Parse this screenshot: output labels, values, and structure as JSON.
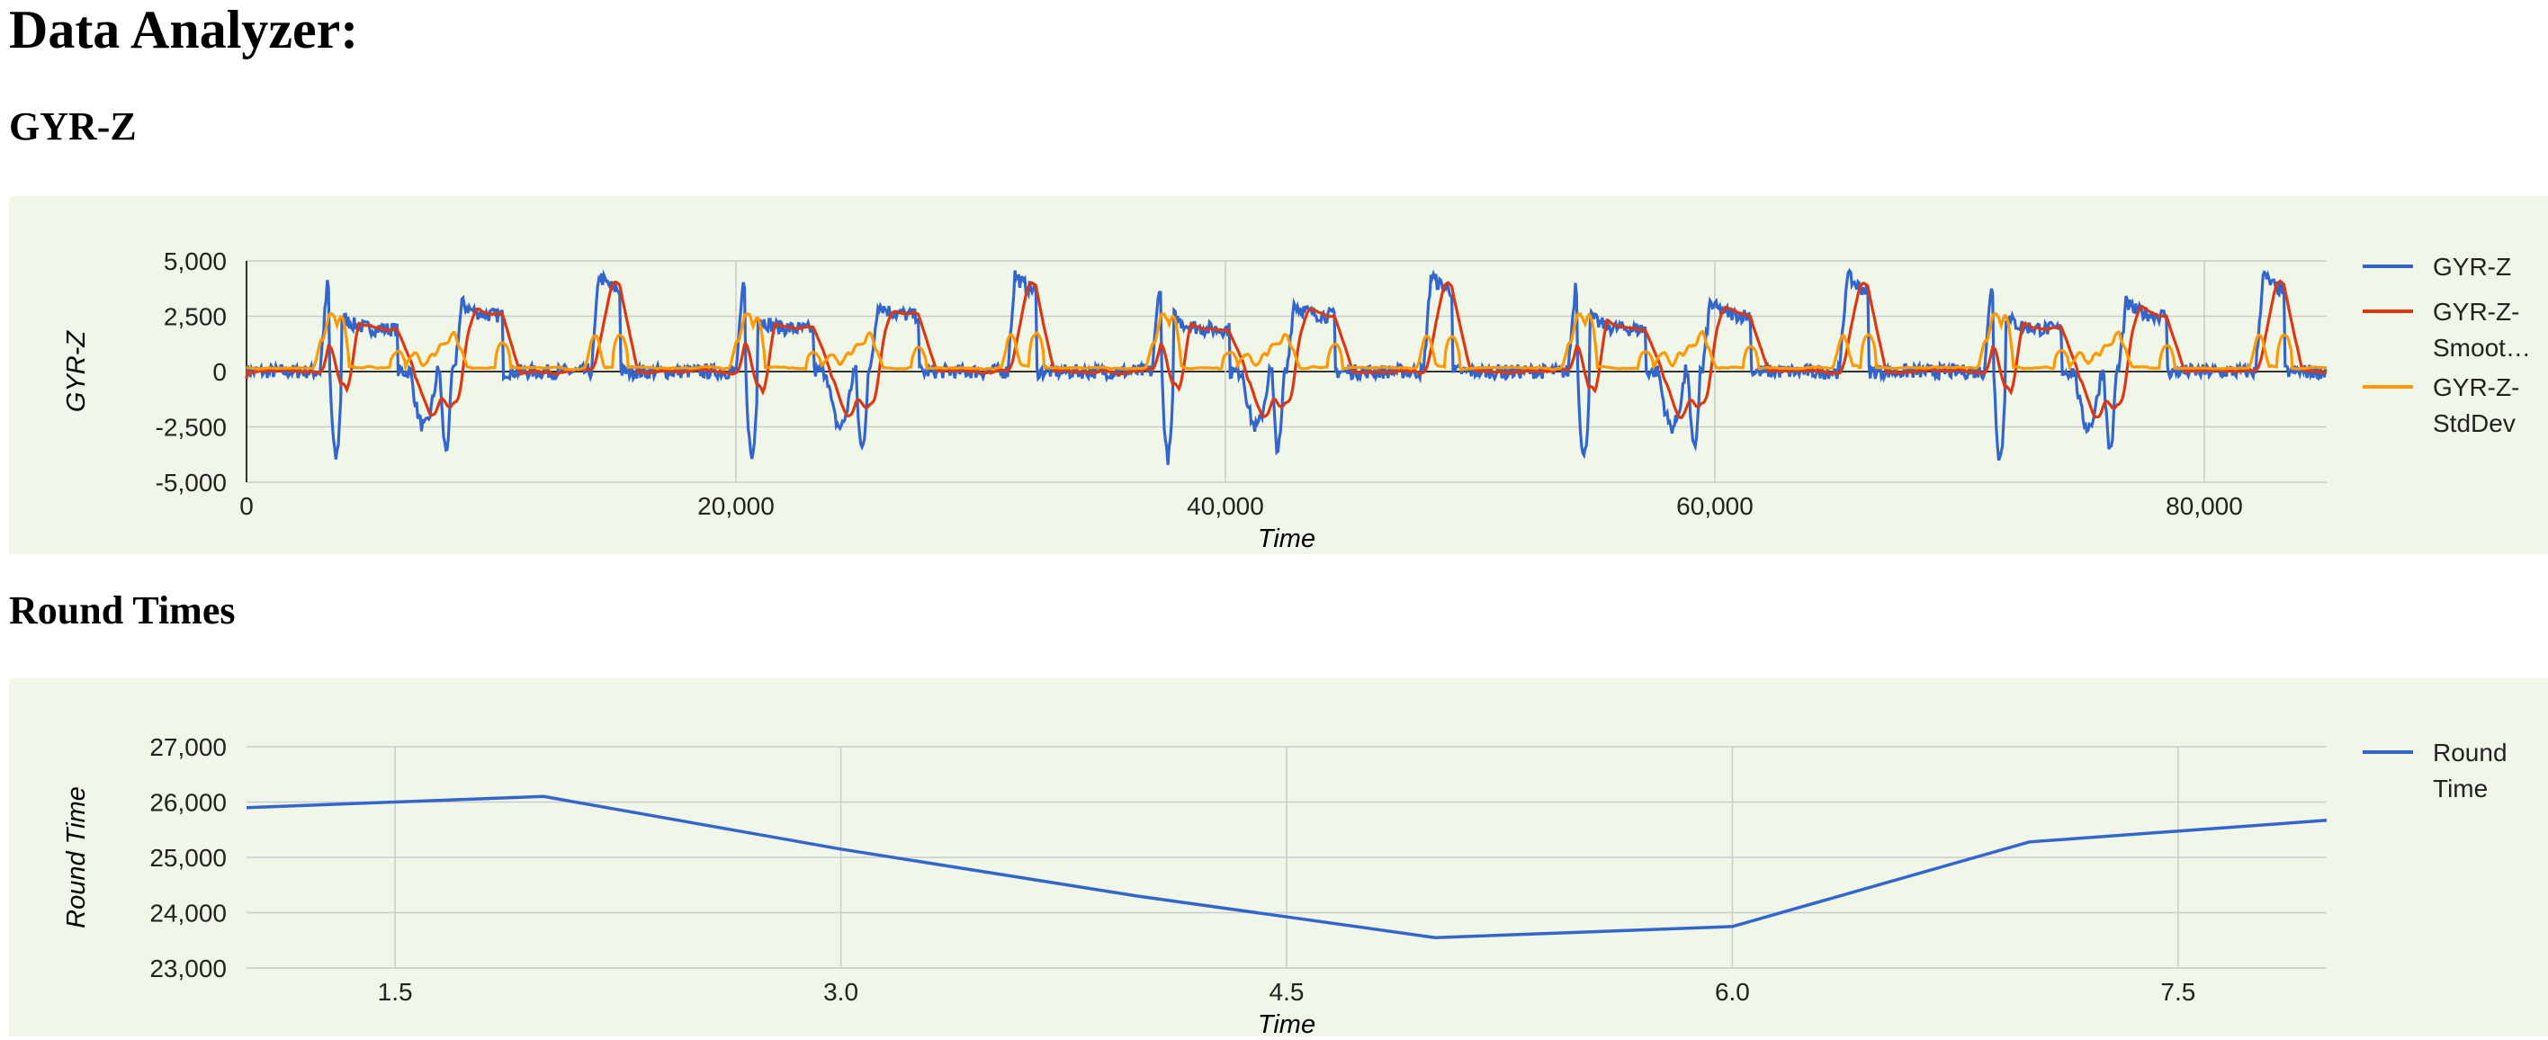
{
  "page": {
    "title": "Data Analyzer:",
    "section1_title": "GYR-Z",
    "section2_title": "Round Times"
  },
  "colors": {
    "panel_bg": "#f0f6e8",
    "blue": "#3366cc",
    "red": "#dc3912",
    "orange": "#ff9900",
    "grid": "#cccccc"
  },
  "chart_data": [
    {
      "type": "line",
      "xlabel": "Time",
      "ylabel": "GYR-Z",
      "xlim": [
        0,
        85000
      ],
      "ylim": [
        -5000,
        5000
      ],
      "x_ticks": [
        0,
        20000,
        40000,
        60000,
        80000
      ],
      "x_tick_labels": [
        "0",
        "20,000",
        "40,000",
        "60,000",
        "80,000"
      ],
      "y_ticks": [
        5000,
        2500,
        0,
        -2500,
        -5000
      ],
      "y_tick_labels": [
        "5,000",
        "2,500",
        "0",
        "-2,500",
        "-5,000"
      ],
      "grid": true,
      "legend": "right",
      "cycle": {
        "period": 17000,
        "events_up": [
          {
            "t": 3000,
            "peak": 3900,
            "level": 1900,
            "end": 6200
          },
          {
            "t": 8500,
            "peak": 3100,
            "level": 2500,
            "end": 10500
          },
          {
            "t": 14100,
            "peak": 4400,
            "level": 3500,
            "end": 15300
          }
        ],
        "events_down": [
          {
            "t": 3400,
            "peak": -3900,
            "level": -1000,
            "end": 3900
          },
          {
            "t": 6700,
            "peak": -2500,
            "level": -1700,
            "end": 7800
          },
          {
            "t": 7900,
            "peak": -3500,
            "level": -2800,
            "end": 8400
          }
        ]
      },
      "series": [
        {
          "name": "GYR-Z",
          "legend_lines": [
            "GYR-Z"
          ],
          "color": "#3366cc"
        },
        {
          "name": "GYR-Z-Smoothed",
          "legend_lines": [
            "GYR-Z-",
            "Smoot…"
          ],
          "color": "#dc3912"
        },
        {
          "name": "GYR-Z-StdDev",
          "legend_lines": [
            "GYR-Z-",
            "StdDev"
          ],
          "color": "#ff9900"
        }
      ]
    },
    {
      "type": "line",
      "xlabel": "Time",
      "ylabel": "Round Time",
      "xlim": [
        1,
        8
      ],
      "ylim": [
        23000,
        27000
      ],
      "x_ticks": [
        1.5,
        3.0,
        4.5,
        6.0,
        7.5
      ],
      "x_tick_labels": [
        "1.5",
        "3.0",
        "4.5",
        "6.0",
        "7.5"
      ],
      "y_ticks": [
        27000,
        26000,
        25000,
        24000,
        23000
      ],
      "y_tick_labels": [
        "27,000",
        "26,000",
        "25,000",
        "24,000",
        "23,000"
      ],
      "grid": true,
      "legend": "right",
      "series": [
        {
          "name": "Round Time",
          "legend_lines": [
            "Round",
            "Time"
          ],
          "color": "#3366cc",
          "x": [
            1,
            2,
            3,
            4,
            5,
            6,
            7,
            8
          ],
          "values": [
            25900,
            26100,
            25150,
            24300,
            23550,
            23750,
            25280,
            25670
          ]
        }
      ]
    }
  ]
}
